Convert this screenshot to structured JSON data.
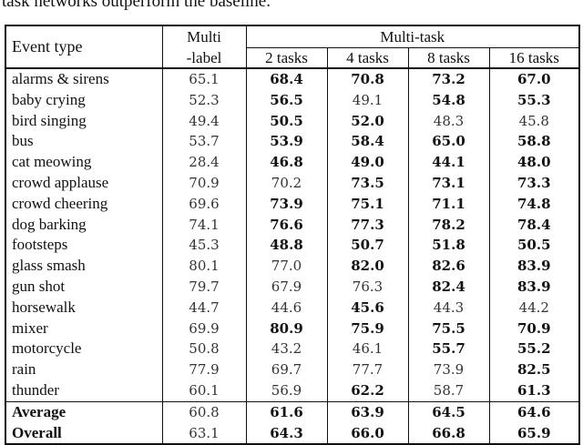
{
  "caption": "task networks outperform the baseline.",
  "table": {
    "headers": {
      "event_type": "Event type",
      "multi_label_line1": "Multi",
      "multi_label_line2": "-label",
      "multi_task": "Multi-task",
      "tasks": [
        "2 tasks",
        "4 tasks",
        "8 tasks",
        "16 tasks"
      ]
    },
    "rows": [
      {
        "label": "alarms & sirens",
        "values": [
          "65.1",
          "68.4",
          "70.8",
          "73.2",
          "67.0"
        ],
        "bold": [
          false,
          true,
          true,
          true,
          true
        ]
      },
      {
        "label": "baby crying",
        "values": [
          "52.3",
          "56.5",
          "49.1",
          "54.8",
          "55.3"
        ],
        "bold": [
          false,
          true,
          false,
          true,
          true
        ]
      },
      {
        "label": "bird singing",
        "values": [
          "49.4",
          "50.5",
          "52.0",
          "48.3",
          "45.8"
        ],
        "bold": [
          false,
          true,
          true,
          false,
          false
        ]
      },
      {
        "label": "bus",
        "values": [
          "53.7",
          "53.9",
          "58.4",
          "65.0",
          "58.8"
        ],
        "bold": [
          false,
          true,
          true,
          true,
          true
        ]
      },
      {
        "label": "cat meowing",
        "values": [
          "28.4",
          "46.8",
          "49.0",
          "44.1",
          "48.0"
        ],
        "bold": [
          false,
          true,
          true,
          true,
          true
        ]
      },
      {
        "label": "crowd applause",
        "values": [
          "70.9",
          "70.2",
          "73.5",
          "73.1",
          "73.3"
        ],
        "bold": [
          false,
          false,
          true,
          true,
          true
        ]
      },
      {
        "label": "crowd cheering",
        "values": [
          "69.6",
          "73.9",
          "75.1",
          "71.1",
          "74.8"
        ],
        "bold": [
          false,
          true,
          true,
          true,
          true
        ]
      },
      {
        "label": "dog barking",
        "values": [
          "74.1",
          "76.6",
          "77.3",
          "78.2",
          "78.4"
        ],
        "bold": [
          false,
          true,
          true,
          true,
          true
        ]
      },
      {
        "label": "footsteps",
        "values": [
          "45.3",
          "48.8",
          "50.7",
          "51.8",
          "50.5"
        ],
        "bold": [
          false,
          true,
          true,
          true,
          true
        ]
      },
      {
        "label": "glass smash",
        "values": [
          "80.1",
          "77.0",
          "82.0",
          "82.6",
          "83.9"
        ],
        "bold": [
          false,
          false,
          true,
          true,
          true
        ]
      },
      {
        "label": "gun shot",
        "values": [
          "79.7",
          "67.9",
          "76.3",
          "82.4",
          "83.9"
        ],
        "bold": [
          false,
          false,
          false,
          true,
          true
        ]
      },
      {
        "label": "horsewalk",
        "values": [
          "44.7",
          "44.6",
          "45.6",
          "44.3",
          "44.2"
        ],
        "bold": [
          false,
          false,
          true,
          false,
          false
        ]
      },
      {
        "label": "mixer",
        "values": [
          "69.9",
          "80.9",
          "75.9",
          "75.5",
          "70.9"
        ],
        "bold": [
          false,
          true,
          true,
          true,
          true
        ]
      },
      {
        "label": "motorcycle",
        "values": [
          "50.8",
          "43.2",
          "46.1",
          "55.7",
          "55.2"
        ],
        "bold": [
          false,
          false,
          false,
          true,
          true
        ]
      },
      {
        "label": "rain",
        "values": [
          "77.9",
          "69.7",
          "77.7",
          "73.9",
          "82.5"
        ],
        "bold": [
          false,
          false,
          false,
          false,
          true
        ]
      },
      {
        "label": "thunder",
        "values": [
          "60.1",
          "56.9",
          "62.2",
          "58.7",
          "61.3"
        ],
        "bold": [
          false,
          false,
          true,
          false,
          true
        ]
      }
    ],
    "summary": [
      {
        "label": "Average",
        "values": [
          "60.8",
          "61.6",
          "63.9",
          "64.5",
          "64.6"
        ],
        "bold": [
          false,
          true,
          true,
          true,
          true
        ]
      },
      {
        "label": "Overall",
        "values": [
          "63.1",
          "64.3",
          "66.0",
          "66.8",
          "65.9"
        ],
        "bold": [
          false,
          true,
          true,
          true,
          true
        ]
      }
    ]
  }
}
